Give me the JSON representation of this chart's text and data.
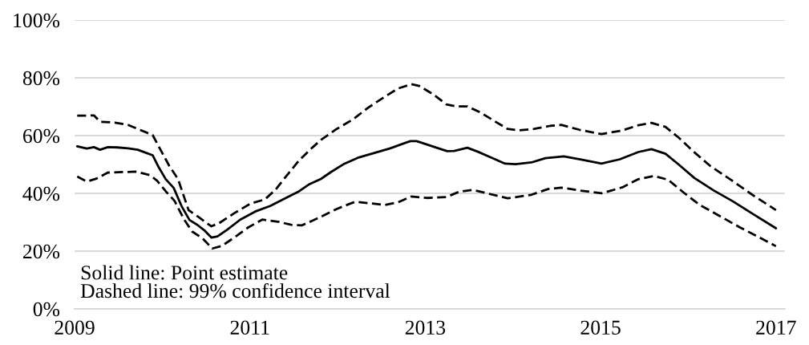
{
  "chart_data": {
    "type": "line",
    "xlim": [
      2009,
      2017.1
    ],
    "xticks": [
      2009,
      2011,
      2013,
      2015,
      2017
    ],
    "ylim": [
      0,
      100
    ],
    "yticks": [
      {
        "value": 0,
        "label": "0%"
      },
      {
        "value": 20,
        "label": "20%"
      },
      {
        "value": 40,
        "label": "40%"
      },
      {
        "value": 60,
        "label": "60%"
      },
      {
        "value": 80,
        "label": "80%"
      },
      {
        "value": 100,
        "label": "100%"
      }
    ],
    "grid": "y",
    "series": [
      {
        "color": "#000000",
        "line_style": "solid",
        "x": [
          2009.03,
          2009.14,
          2009.22,
          2009.29,
          2009.38,
          2009.49,
          2009.61,
          2009.72,
          2009.8,
          2009.89,
          2009.96,
          2010.04,
          2010.13,
          2010.22,
          2010.31,
          2010.4,
          2010.48,
          2010.56,
          2010.63,
          2010.74,
          2010.89,
          2011.06,
          2011.23,
          2011.41,
          2011.56,
          2011.68,
          2011.81,
          2011.93,
          2012.08,
          2012.23,
          2012.42,
          2012.6,
          2012.72,
          2012.83,
          2012.9,
          2013.02,
          2013.15,
          2013.25,
          2013.33,
          2013.48,
          2013.6,
          2013.76,
          2013.91,
          2014.03,
          2014.21,
          2014.37,
          2014.58,
          2014.79,
          2015.01,
          2015.22,
          2015.43,
          2015.58,
          2015.74,
          2015.89,
          2016.07,
          2016.29,
          2016.5,
          2016.74,
          2017.0
        ],
        "values": [
          56.3,
          55.5,
          56.0,
          55.1,
          56.0,
          55.9,
          55.6,
          55.1,
          54.2,
          53.2,
          49.0,
          44.9,
          41.9,
          35.6,
          30.8,
          29.1,
          27.2,
          24.7,
          25.1,
          27.4,
          30.9,
          33.7,
          35.6,
          38.4,
          40.7,
          43.2,
          45.0,
          47.5,
          50.3,
          52.3,
          54.0,
          55.6,
          56.9,
          58.1,
          58.1,
          56.9,
          55.6,
          54.6,
          54.7,
          55.8,
          54.4,
          52.3,
          50.3,
          50.1,
          50.7,
          52.2,
          52.8,
          51.6,
          50.3,
          51.8,
          54.3,
          55.3,
          53.7,
          50.0,
          45.3,
          41.0,
          37.4,
          32.8,
          27.9
        ]
      },
      {
        "color": "#000000",
        "line_style": "dashed",
        "x": [
          2009.03,
          2009.15,
          2009.22,
          2009.29,
          2009.46,
          2009.61,
          2009.76,
          2009.89,
          2009.98,
          2010.08,
          2010.18,
          2010.3,
          2010.4,
          2010.56,
          2010.65,
          2010.83,
          2011.01,
          2011.17,
          2011.29,
          2011.41,
          2011.56,
          2011.71,
          2011.81,
          2011.99,
          2012.17,
          2012.35,
          2012.54,
          2012.69,
          2012.84,
          2012.93,
          2013.09,
          2013.24,
          2013.36,
          2013.48,
          2013.63,
          2013.79,
          2013.94,
          2014.06,
          2014.24,
          2014.43,
          2014.55,
          2014.76,
          2015.01,
          2015.25,
          2015.43,
          2015.58,
          2015.74,
          2015.89,
          2016.07,
          2016.25,
          2016.5,
          2016.74,
          2017.0
        ],
        "values": [
          66.9,
          66.9,
          67.0,
          64.8,
          64.5,
          63.7,
          61.8,
          60.2,
          55.1,
          49.5,
          44.9,
          34.2,
          32.1,
          28.6,
          29.7,
          33.3,
          36.5,
          37.9,
          41.2,
          45.8,
          51.4,
          55.8,
          58.5,
          62.3,
          65.5,
          69.7,
          73.5,
          76.3,
          77.8,
          77.2,
          74.3,
          70.8,
          70.1,
          70.1,
          68.0,
          65.0,
          62.3,
          61.8,
          62.3,
          63.4,
          63.7,
          62.0,
          60.5,
          61.8,
          63.6,
          64.4,
          63.0,
          59.3,
          54.2,
          49.5,
          44.4,
          39.3,
          34.2
        ]
      },
      {
        "color": "#000000",
        "line_style": "dashed",
        "x": [
          2009.03,
          2009.14,
          2009.25,
          2009.38,
          2009.7,
          2009.86,
          2009.94,
          2010.04,
          2010.14,
          2010.25,
          2010.34,
          2010.46,
          2010.57,
          2010.68,
          2010.83,
          2010.98,
          2011.14,
          2011.32,
          2011.47,
          2011.59,
          2011.71,
          2011.81,
          2011.99,
          2012.2,
          2012.35,
          2012.54,
          2012.69,
          2012.84,
          2013.02,
          2013.24,
          2013.39,
          2013.54,
          2013.72,
          2013.94,
          2014.21,
          2014.4,
          2014.55,
          2014.76,
          2015.01,
          2015.25,
          2015.43,
          2015.61,
          2015.77,
          2015.95,
          2016.13,
          2016.35,
          2016.59,
          2016.8,
          2017.0
        ],
        "values": [
          45.8,
          44.1,
          45.1,
          47.2,
          47.5,
          46.3,
          44.4,
          40.7,
          37.4,
          30.9,
          26.8,
          24.4,
          20.9,
          21.8,
          24.9,
          28.2,
          30.9,
          30.2,
          29.1,
          28.9,
          30.5,
          31.9,
          34.6,
          37.1,
          36.6,
          36.0,
          36.9,
          38.9,
          38.4,
          38.7,
          40.6,
          41.2,
          39.9,
          38.3,
          39.5,
          41.5,
          42.0,
          41.0,
          40.0,
          42.1,
          44.9,
          46.0,
          44.7,
          40.2,
          36.0,
          32.3,
          28.2,
          24.9,
          21.7
        ]
      }
    ],
    "annotations": [
      "Solid line: Point estimate",
      "Dashed line: 99% confidence interval"
    ]
  }
}
